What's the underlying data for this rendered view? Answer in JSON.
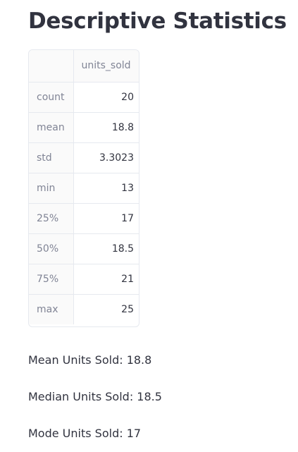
{
  "page": {
    "title": "Descriptive Statistics"
  },
  "stats_table": {
    "index_header": "",
    "column_header": "units_sold",
    "rows": [
      {
        "label": "count",
        "value": "20"
      },
      {
        "label": "mean",
        "value": "18.8"
      },
      {
        "label": "std",
        "value": "3.3023"
      },
      {
        "label": "min",
        "value": "13"
      },
      {
        "label": "25%",
        "value": "17"
      },
      {
        "label": "50%",
        "value": "18.5"
      },
      {
        "label": "75%",
        "value": "21"
      },
      {
        "label": "max",
        "value": "25"
      }
    ]
  },
  "summary": {
    "mean_text": "Mean Units Sold: 18.8",
    "median_text": "Median Units Sold: 18.5",
    "mode_text": "Mode Units Sold: 17"
  }
}
